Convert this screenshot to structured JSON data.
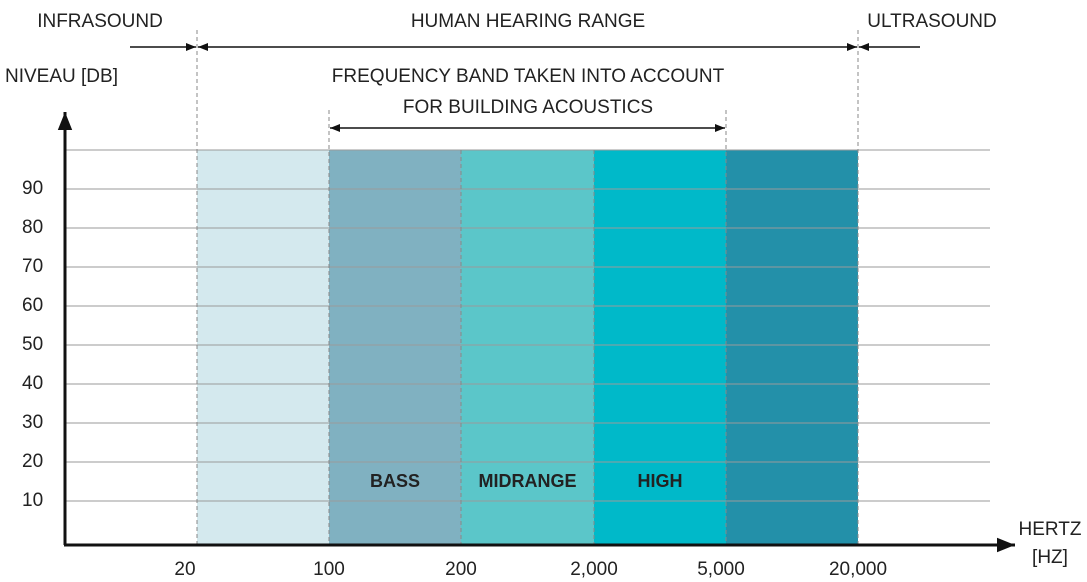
{
  "top_labels": {
    "infrasound": "INFRASOUND",
    "human": "HUMAN HEARING RANGE",
    "ultrasound": "ULTRASOUND"
  },
  "band_note": [
    "FREQUENCY BAND TAKEN INTO ACCOUNT",
    "FOR BUILDING ACOUSTICS"
  ],
  "y_axis": {
    "label": "NIVEAU [DB]",
    "lim": [
      0,
      100
    ],
    "ticks": [
      10,
      20,
      30,
      40,
      50,
      60,
      70,
      80,
      90
    ]
  },
  "x_axis": {
    "label": [
      "HERTZ",
      "[HZ]"
    ],
    "ticks": [
      "20",
      "100",
      "200",
      "2,000",
      "5,000",
      "20,000"
    ]
  },
  "bands": [
    {
      "color": "#d4e9ee"
    },
    {
      "color": "#80b1c1",
      "label": "BASS"
    },
    {
      "color": "#5bc6c9",
      "label": "MIDRANGE"
    },
    {
      "color": "#00b9c9",
      "label": "HIGH"
    },
    {
      "color": "#2390a9"
    }
  ]
}
